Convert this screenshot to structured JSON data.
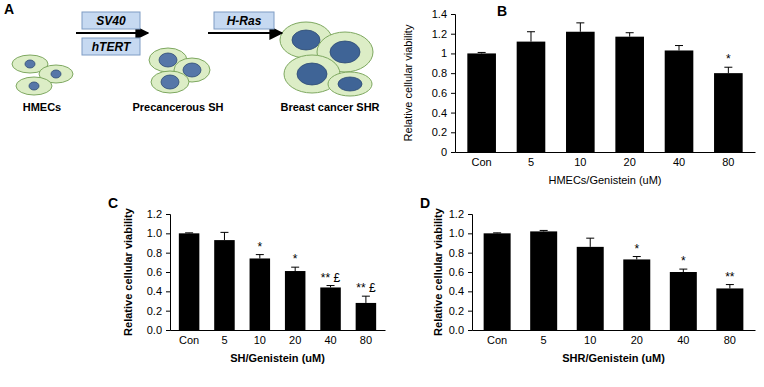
{
  "diagram": {
    "label": "A",
    "stages": [
      "HMECs",
      "Precancerous SH",
      "Breast cancer SHR"
    ],
    "steps": [
      [
        "SV40",
        "hTERT"
      ],
      [
        "H-Ras"
      ]
    ]
  },
  "chart_data": [
    {
      "type": "bar",
      "title": "B",
      "x_label": "HMECs/Genistein (uM)",
      "y_label": "Relative cellular viability",
      "categories": [
        "Con",
        "5",
        "10",
        "20",
        "40",
        "80"
      ],
      "values": [
        1.0,
        1.12,
        1.22,
        1.17,
        1.03,
        0.8
      ],
      "errors": [
        0.01,
        0.1,
        0.09,
        0.04,
        0.05,
        0.06
      ],
      "color": "#000000",
      "grid": false,
      "ylim": [
        0,
        1.4
      ],
      "yticks": [
        0,
        0.2,
        0.4,
        0.6,
        0.8,
        1,
        1.2,
        1.4
      ],
      "annotations": [
        {
          "x": "80",
          "text": "*"
        }
      ]
    },
    {
      "type": "bar",
      "title": "C",
      "x_label": "SH/Genistein (uM)",
      "y_label": "Relative cellular viability",
      "categories": [
        "Con",
        "5",
        "10",
        "20",
        "40",
        "80"
      ],
      "values": [
        1.0,
        0.93,
        0.74,
        0.61,
        0.44,
        0.28
      ],
      "errors": [
        0.005,
        0.08,
        0.04,
        0.04,
        0.02,
        0.07
      ],
      "color": "#000000",
      "grid": false,
      "ylim": [
        0,
        1.2
      ],
      "yticks": [
        {
          "value": 0,
          "label": "0.0"
        },
        0.2,
        0.4,
        0.6,
        0.8,
        {
          "value": 1,
          "label": "1.0"
        },
        1.2
      ],
      "annotations": [
        {
          "x": "10",
          "text": "*"
        },
        {
          "x": "20",
          "text": "*"
        },
        {
          "x": "40",
          "text": "** £"
        },
        {
          "x": "80",
          "text": "** £"
        }
      ]
    },
    {
      "type": "bar",
      "title": "D",
      "x_label": "SHR/Genistein (uM)",
      "y_label": "Relative cellular viability",
      "categories": [
        "Con",
        "5",
        "10",
        "20",
        "40",
        "80"
      ],
      "values": [
        1.0,
        1.02,
        0.86,
        0.73,
        0.6,
        0.43
      ],
      "errors": [
        0.005,
        0.01,
        0.09,
        0.03,
        0.03,
        0.04
      ],
      "color": "#000000",
      "grid": false,
      "ylim": [
        0,
        1.2
      ],
      "yticks": [
        {
          "value": 0,
          "label": "0.0"
        },
        0.2,
        0.4,
        0.6,
        0.8,
        {
          "value": 1,
          "label": "1.0"
        },
        1.2
      ],
      "annotations": [
        {
          "x": "20",
          "text": "*"
        },
        {
          "x": "40",
          "text": "*"
        },
        {
          "x": "80",
          "text": "**"
        }
      ]
    }
  ]
}
